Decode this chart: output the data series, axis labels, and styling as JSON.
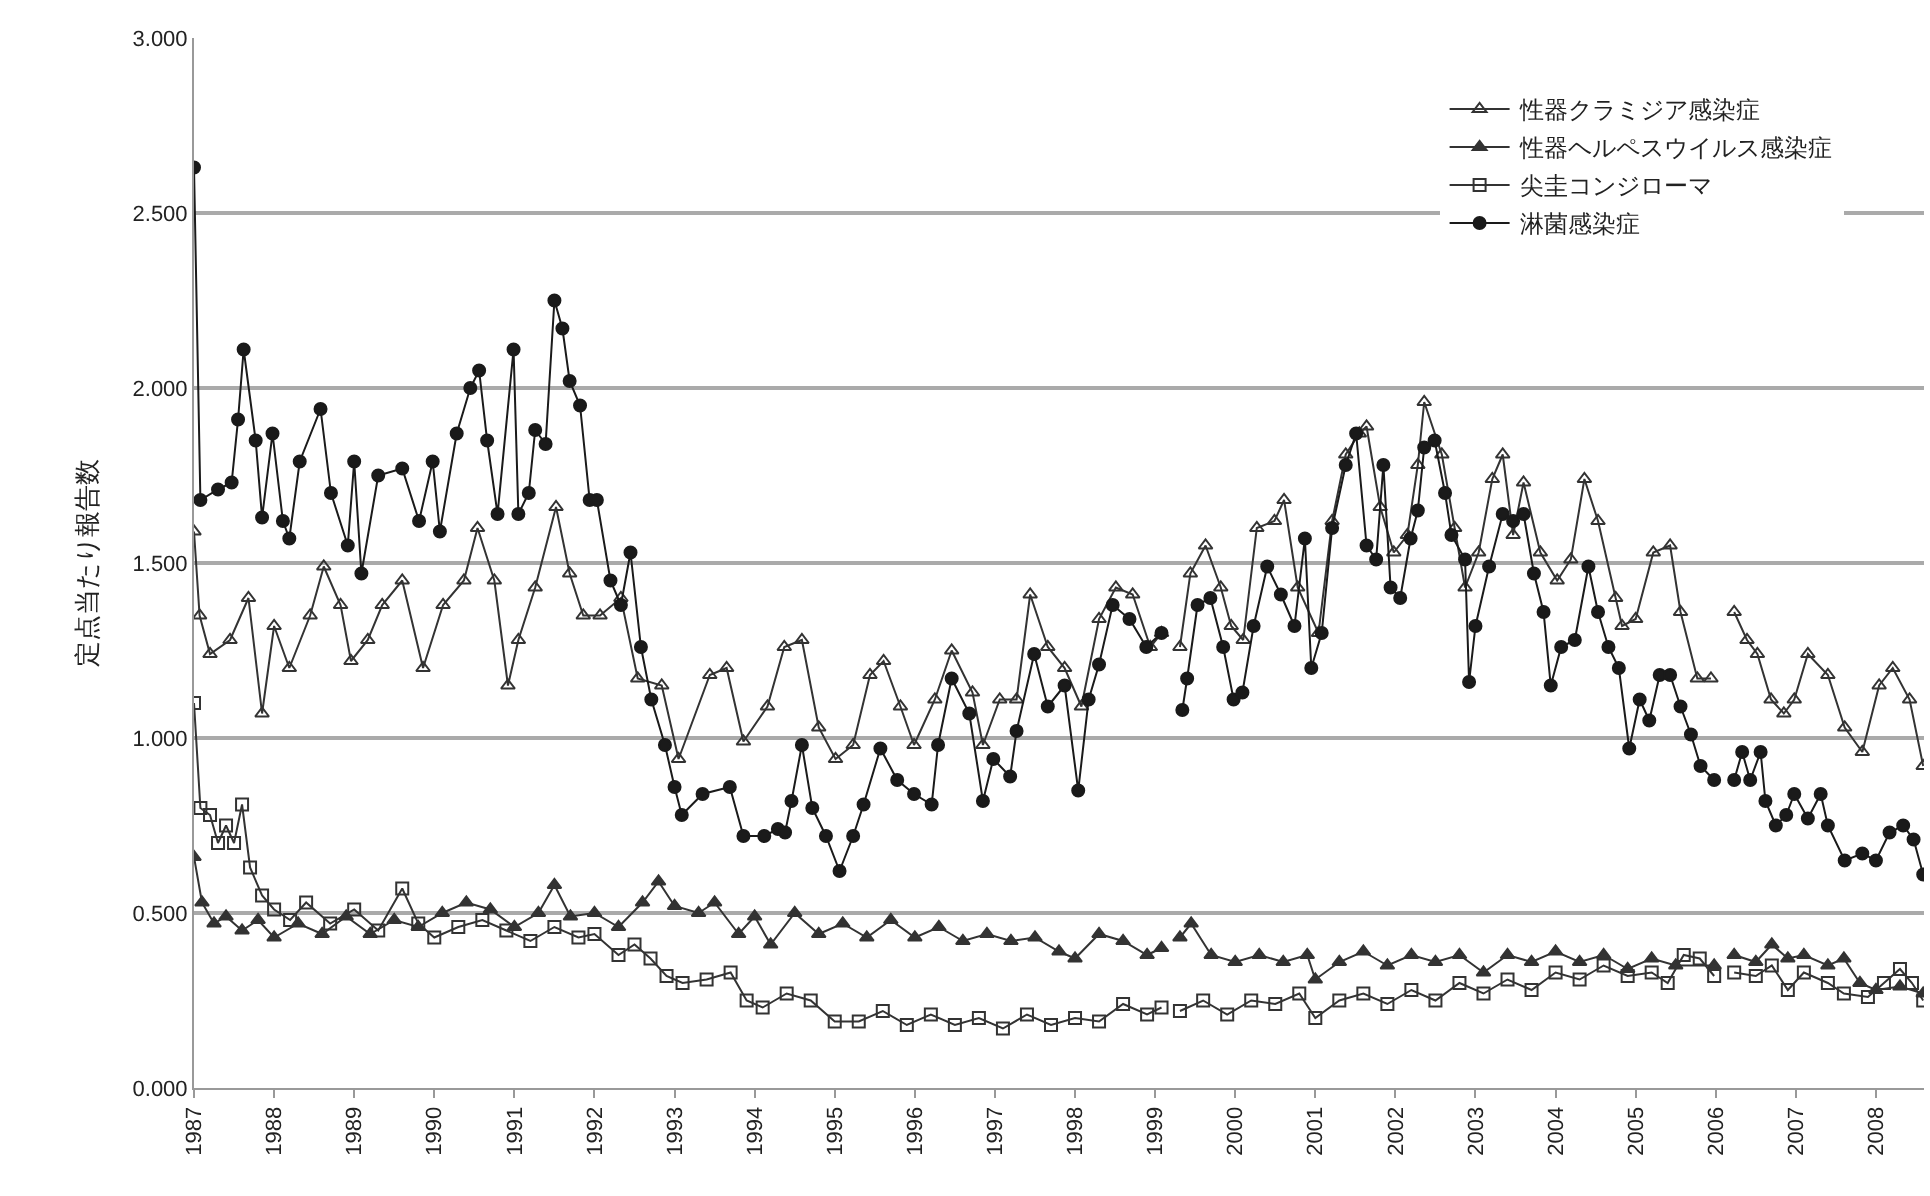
{
  "chart_data": {
    "type": "line",
    "ylabel": "定点当たり報告数",
    "xlim": [
      1987,
      2008.6
    ],
    "xticks": [
      1987,
      1988,
      1989,
      1990,
      1991,
      1992,
      1993,
      1994,
      1995,
      1996,
      1997,
      1998,
      1999,
      2000,
      2001,
      2002,
      2003,
      2004,
      2005,
      2006,
      2007,
      2008
    ],
    "ylim": [
      0,
      3
    ],
    "yticks": [
      {
        "value": 0,
        "label": "0.000"
      },
      {
        "value": 0.5,
        "label": "0.500"
      },
      {
        "value": 1,
        "label": "1.000"
      },
      {
        "value": 1.5,
        "label": "1.500"
      },
      {
        "value": 2,
        "label": "2.000"
      },
      {
        "value": 2.5,
        "label": "2.500"
      },
      {
        "value": 3,
        "label": "3.000"
      }
    ],
    "grid": "y",
    "legend": "top right",
    "series": [
      {
        "name": "性器クラミジア感染症",
        "color": "#333333",
        "marker": "triangle",
        "x": [
          1987.0,
          1987.07,
          1987.2,
          1987.45,
          1987.68,
          1987.85,
          1988.0,
          1988.19,
          1988.45,
          1988.62,
          1988.83,
          1988.96,
          1989.17,
          1989.35,
          1989.6,
          1989.86,
          1990.11,
          1990.37,
          1990.54,
          1990.75,
          1990.92,
          1991.05,
          1991.26,
          1991.52,
          1991.69,
          1991.86,
          1992.07,
          1992.33,
          1992.54,
          1992.84,
          1993.05,
          1993.44,
          1993.65,
          1993.86,
          1994.16,
          1994.37,
          1994.59,
          1994.8,
          1995.01,
          1995.23,
          1995.44,
          1995.61,
          1995.82,
          1995.99,
          1996.25,
          1996.46,
          1996.72,
          1996.85,
          1997.06,
          1997.27,
          1997.44,
          1997.66,
          1997.87,
          1998.08,
          1998.3,
          1998.51,
          1998.72,
          1998.94,
          1999.08,
          1999.2,
          1999.31,
          1999.44,
          1999.63,
          1999.82,
          1999.95,
          2000.1,
          2000.27,
          2000.49,
          2000.61,
          2000.78,
          2001.04,
          2001.21,
          2001.38,
          2001.55,
          2001.64,
          2001.81,
          2001.98,
          2002.15,
          2002.28,
          2002.36,
          2002.58,
          2002.74,
          2002.87,
          2003.04,
          2003.21,
          2003.34,
          2003.47,
          2003.6,
          2003.81,
          2004.02,
          2004.19,
          2004.36,
          2004.53,
          2004.75,
          2004.83,
          2005.0,
          2005.22,
          2005.43,
          2005.56,
          2005.77,
          2005.94,
          2006.1,
          2006.23,
          2006.39,
          2006.52,
          2006.69,
          2006.85,
          2006.98,
          2007.15,
          2007.4,
          2007.61,
          2007.83,
          2008.04,
          2008.21,
          2008.42,
          2008.59
        ],
        "values": [
          1.59,
          1.35,
          1.24,
          1.28,
          1.4,
          1.07,
          1.32,
          1.2,
          1.35,
          1.49,
          1.38,
          1.22,
          1.28,
          1.38,
          1.45,
          1.2,
          1.38,
          1.45,
          1.6,
          1.45,
          1.15,
          1.28,
          1.43,
          1.66,
          1.47,
          1.35,
          1.35,
          1.4,
          1.17,
          1.15,
          0.94,
          1.18,
          1.2,
          0.99,
          1.09,
          1.26,
          1.28,
          1.03,
          0.94,
          0.98,
          1.18,
          1.22,
          1.09,
          0.98,
          1.11,
          1.25,
          1.13,
          0.98,
          1.11,
          1.11,
          1.41,
          1.26,
          1.2,
          1.09,
          1.34,
          1.43,
          1.41,
          1.26,
          1.3,
          null,
          1.26,
          1.47,
          1.55,
          1.43,
          1.32,
          1.28,
          1.6,
          1.62,
          1.68,
          1.43,
          1.3,
          1.62,
          1.81,
          1.87,
          1.89,
          1.66,
          1.53,
          1.58,
          1.78,
          1.96,
          1.81,
          1.6,
          1.43,
          1.53,
          1.74,
          1.81,
          1.58,
          1.73,
          1.53,
          1.45,
          1.51,
          1.74,
          1.62,
          1.4,
          1.32,
          1.34,
          1.53,
          1.55,
          1.36,
          1.17,
          1.17,
          null,
          1.36,
          1.28,
          1.24,
          1.11,
          1.07,
          1.11,
          1.24,
          1.18,
          1.03,
          0.96,
          1.15,
          1.2,
          1.11,
          0.92
        ]
      },
      {
        "name": "性器ヘルペスウイルス感染症",
        "color": "#333333",
        "marker": "triangle",
        "x": [
          1987.0,
          1987.1,
          1987.25,
          1987.4,
          1987.6,
          1987.8,
          1988.0,
          1988.3,
          1988.6,
          1988.9,
          1989.2,
          1989.5,
          1989.8,
          1990.1,
          1990.4,
          1990.7,
          1991.0,
          1991.3,
          1991.5,
          1991.7,
          1992.0,
          1992.3,
          1992.6,
          1992.8,
          1993.0,
          1993.3,
          1993.5,
          1993.8,
          1994.0,
          1994.2,
          1994.5,
          1994.8,
          1995.1,
          1995.4,
          1995.7,
          1996.0,
          1996.3,
          1996.6,
          1996.9,
          1997.2,
          1997.5,
          1997.8,
          1998.0,
          1998.3,
          1998.6,
          1998.9,
          1999.08,
          1999.2,
          1999.31,
          1999.45,
          1999.7,
          2000.0,
          2000.3,
          2000.6,
          2000.9,
          2001.0,
          2001.3,
          2001.6,
          2001.9,
          2002.2,
          2002.5,
          2002.8,
          2003.1,
          2003.4,
          2003.7,
          2004.0,
          2004.3,
          2004.6,
          2004.9,
          2005.2,
          2005.5,
          2005.98,
          2006.1,
          2006.23,
          2006.5,
          2006.7,
          2006.9,
          2007.1,
          2007.4,
          2007.6,
          2007.8,
          2008.0,
          2008.3,
          2008.59
        ],
        "values": [
          0.66,
          0.53,
          0.47,
          0.49,
          0.45,
          0.48,
          0.43,
          0.47,
          0.44,
          0.49,
          0.44,
          0.48,
          0.46,
          0.5,
          0.53,
          0.51,
          0.46,
          0.5,
          0.58,
          0.49,
          0.5,
          0.46,
          0.53,
          0.59,
          0.52,
          0.5,
          0.53,
          0.44,
          0.49,
          0.41,
          0.5,
          0.44,
          0.47,
          0.43,
          0.48,
          0.43,
          0.46,
          0.42,
          0.44,
          0.42,
          0.43,
          0.39,
          0.37,
          0.44,
          0.42,
          0.38,
          0.4,
          null,
          0.43,
          0.47,
          0.38,
          0.36,
          0.38,
          0.36,
          0.38,
          0.31,
          0.36,
          0.39,
          0.35,
          0.38,
          0.36,
          0.38,
          0.33,
          0.38,
          0.36,
          0.39,
          0.36,
          0.38,
          0.34,
          0.37,
          0.35,
          0.35,
          null,
          0.38,
          0.36,
          0.41,
          0.37,
          0.38,
          0.35,
          0.37,
          0.3,
          0.28,
          0.29,
          0.27
        ]
      },
      {
        "name": "尖圭コンジローマ",
        "color": "#333333",
        "marker": "square",
        "x": [
          1987.0,
          1987.08,
          1987.2,
          1987.3,
          1987.4,
          1987.5,
          1987.6,
          1987.7,
          1987.85,
          1988.0,
          1988.2,
          1988.4,
          1988.7,
          1989.0,
          1989.3,
          1989.6,
          1989.8,
          1990.0,
          1990.3,
          1990.6,
          1990.9,
          1991.2,
          1991.5,
          1991.8,
          1992.0,
          1992.3,
          1992.5,
          1992.7,
          1992.9,
          1993.1,
          1993.4,
          1993.7,
          1993.9,
          1994.1,
          1994.4,
          1994.7,
          1995.0,
          1995.3,
          1995.6,
          1995.9,
          1996.2,
          1996.5,
          1996.8,
          1997.1,
          1997.4,
          1997.7,
          1998.0,
          1998.3,
          1998.6,
          1998.9,
          1999.08,
          1999.2,
          1999.31,
          1999.6,
          1999.9,
          2000.2,
          2000.5,
          2000.8,
          2001.0,
          2001.3,
          2001.6,
          2001.9,
          2002.2,
          2002.5,
          2002.8,
          2003.1,
          2003.4,
          2003.7,
          2004.0,
          2004.3,
          2004.6,
          2004.9,
          2005.2,
          2005.4,
          2005.6,
          2005.8,
          2005.98,
          2006.1,
          2006.23,
          2006.5,
          2006.7,
          2006.9,
          2007.1,
          2007.4,
          2007.6,
          2007.9,
          2008.1,
          2008.3,
          2008.45,
          2008.59
        ],
        "values": [
          1.1,
          0.8,
          0.78,
          0.7,
          0.75,
          0.7,
          0.81,
          0.63,
          0.55,
          0.51,
          0.48,
          0.53,
          0.47,
          0.51,
          0.45,
          0.57,
          0.47,
          0.43,
          0.46,
          0.48,
          0.45,
          0.42,
          0.46,
          0.43,
          0.44,
          0.38,
          0.41,
          0.37,
          0.32,
          0.3,
          0.31,
          0.33,
          0.25,
          0.23,
          0.27,
          0.25,
          0.19,
          0.19,
          0.22,
          0.18,
          0.21,
          0.18,
          0.2,
          0.17,
          0.21,
          0.18,
          0.2,
          0.19,
          0.24,
          0.21,
          0.23,
          null,
          0.22,
          0.25,
          0.21,
          0.25,
          0.24,
          0.27,
          0.2,
          0.25,
          0.27,
          0.24,
          0.28,
          0.25,
          0.3,
          0.27,
          0.31,
          0.28,
          0.33,
          0.31,
          0.35,
          0.32,
          0.33,
          0.3,
          0.38,
          0.37,
          0.32,
          null,
          0.33,
          0.32,
          0.35,
          0.28,
          0.33,
          0.3,
          0.27,
          0.26,
          0.3,
          0.34,
          0.3,
          0.25
        ]
      },
      {
        "name": "淋菌感染症",
        "color": "#1a1a1a",
        "marker": "circle",
        "x": [
          1987.0,
          1987.08,
          1987.3,
          1987.47,
          1987.55,
          1987.62,
          1987.77,
          1987.85,
          1987.98,
          1988.11,
          1988.19,
          1988.32,
          1988.58,
          1988.71,
          1988.92,
          1989.0,
          1989.09,
          1989.3,
          1989.6,
          1989.81,
          1989.98,
          1990.07,
          1990.28,
          1990.45,
          1990.56,
          1990.66,
          1990.79,
          1990.99,
          1991.05,
          1991.18,
          1991.26,
          1991.39,
          1991.5,
          1991.6,
          1991.69,
          1991.82,
          1991.94,
          1992.03,
          1992.2,
          1992.33,
          1992.45,
          1992.58,
          1992.71,
          1992.88,
          1993.0,
          1993.09,
          1993.35,
          1993.69,
          1993.86,
          1994.12,
          1994.29,
          1994.38,
          1994.46,
          1994.59,
          1994.72,
          1994.89,
          1995.06,
          1995.23,
          1995.36,
          1995.57,
          1995.78,
          1995.99,
          1996.21,
          1996.29,
          1996.46,
          1996.68,
          1996.85,
          1996.98,
          1997.19,
          1997.27,
          1997.49,
          1997.66,
          1997.87,
          1998.04,
          1998.17,
          1998.3,
          1998.47,
          1998.68,
          1998.89,
          1999.08,
          1999.2,
          1999.34,
          1999.4,
          1999.53,
          1999.69,
          1999.85,
          1999.98,
          2000.09,
          2000.23,
          2000.4,
          2000.57,
          2000.74,
          2000.87,
          2000.95,
          2001.08,
          2001.21,
          2001.38,
          2001.51,
          2001.64,
          2001.76,
          2001.85,
          2001.94,
          2002.06,
          2002.19,
          2002.28,
          2002.36,
          2002.49,
          2002.62,
          2002.7,
          2002.87,
          2002.92,
          2003.0,
          2003.17,
          2003.34,
          2003.47,
          2003.6,
          2003.73,
          2003.85,
          2003.94,
          2004.07,
          2004.24,
          2004.41,
          2004.53,
          2004.66,
          2004.79,
          2004.92,
          2005.05,
          2005.17,
          2005.3,
          2005.43,
          2005.56,
          2005.69,
          2005.81,
          2005.98,
          2006.1,
          2006.23,
          2006.33,
          2006.43,
          2006.56,
          2006.62,
          2006.75,
          2006.88,
          2006.98,
          2007.15,
          2007.31,
          2007.4,
          2007.61,
          2007.83,
          2008.0,
          2008.17,
          2008.34,
          2008.47,
          2008.59
        ],
        "values": [
          2.63,
          1.68,
          1.71,
          1.73,
          1.91,
          2.11,
          1.85,
          1.63,
          1.87,
          1.62,
          1.57,
          1.79,
          1.94,
          1.7,
          1.55,
          1.79,
          1.47,
          1.75,
          1.77,
          1.62,
          1.79,
          1.59,
          1.87,
          2.0,
          2.05,
          1.85,
          1.64,
          2.11,
          1.64,
          1.7,
          1.88,
          1.84,
          2.25,
          2.17,
          2.02,
          1.95,
          1.68,
          1.68,
          1.45,
          1.38,
          1.53,
          1.26,
          1.11,
          0.98,
          0.86,
          0.78,
          0.84,
          0.86,
          0.72,
          0.72,
          0.74,
          0.73,
          0.82,
          0.98,
          0.8,
          0.72,
          0.62,
          0.72,
          0.81,
          0.97,
          0.88,
          0.84,
          0.81,
          0.98,
          1.17,
          1.07,
          0.82,
          0.94,
          0.89,
          1.02,
          1.24,
          1.09,
          1.15,
          0.85,
          1.11,
          1.21,
          1.38,
          1.34,
          1.26,
          1.3,
          null,
          1.08,
          1.17,
          1.38,
          1.4,
          1.26,
          1.11,
          1.13,
          1.32,
          1.49,
          1.41,
          1.32,
          1.57,
          1.2,
          1.3,
          1.6,
          1.78,
          1.87,
          1.55,
          1.51,
          1.78,
          1.43,
          1.4,
          1.57,
          1.65,
          1.83,
          1.85,
          1.7,
          1.58,
          1.51,
          1.16,
          1.32,
          1.49,
          1.64,
          1.62,
          1.64,
          1.47,
          1.36,
          1.15,
          1.26,
          1.28,
          1.49,
          1.36,
          1.26,
          1.2,
          0.97,
          1.11,
          1.05,
          1.18,
          1.18,
          1.09,
          1.01,
          0.92,
          0.88,
          null,
          0.88,
          0.96,
          0.88,
          0.96,
          0.82,
          0.75,
          0.78,
          0.84,
          0.77,
          0.84,
          0.75,
          0.65,
          0.67,
          0.65,
          0.73,
          0.75,
          0.71,
          0.61
        ]
      }
    ]
  }
}
